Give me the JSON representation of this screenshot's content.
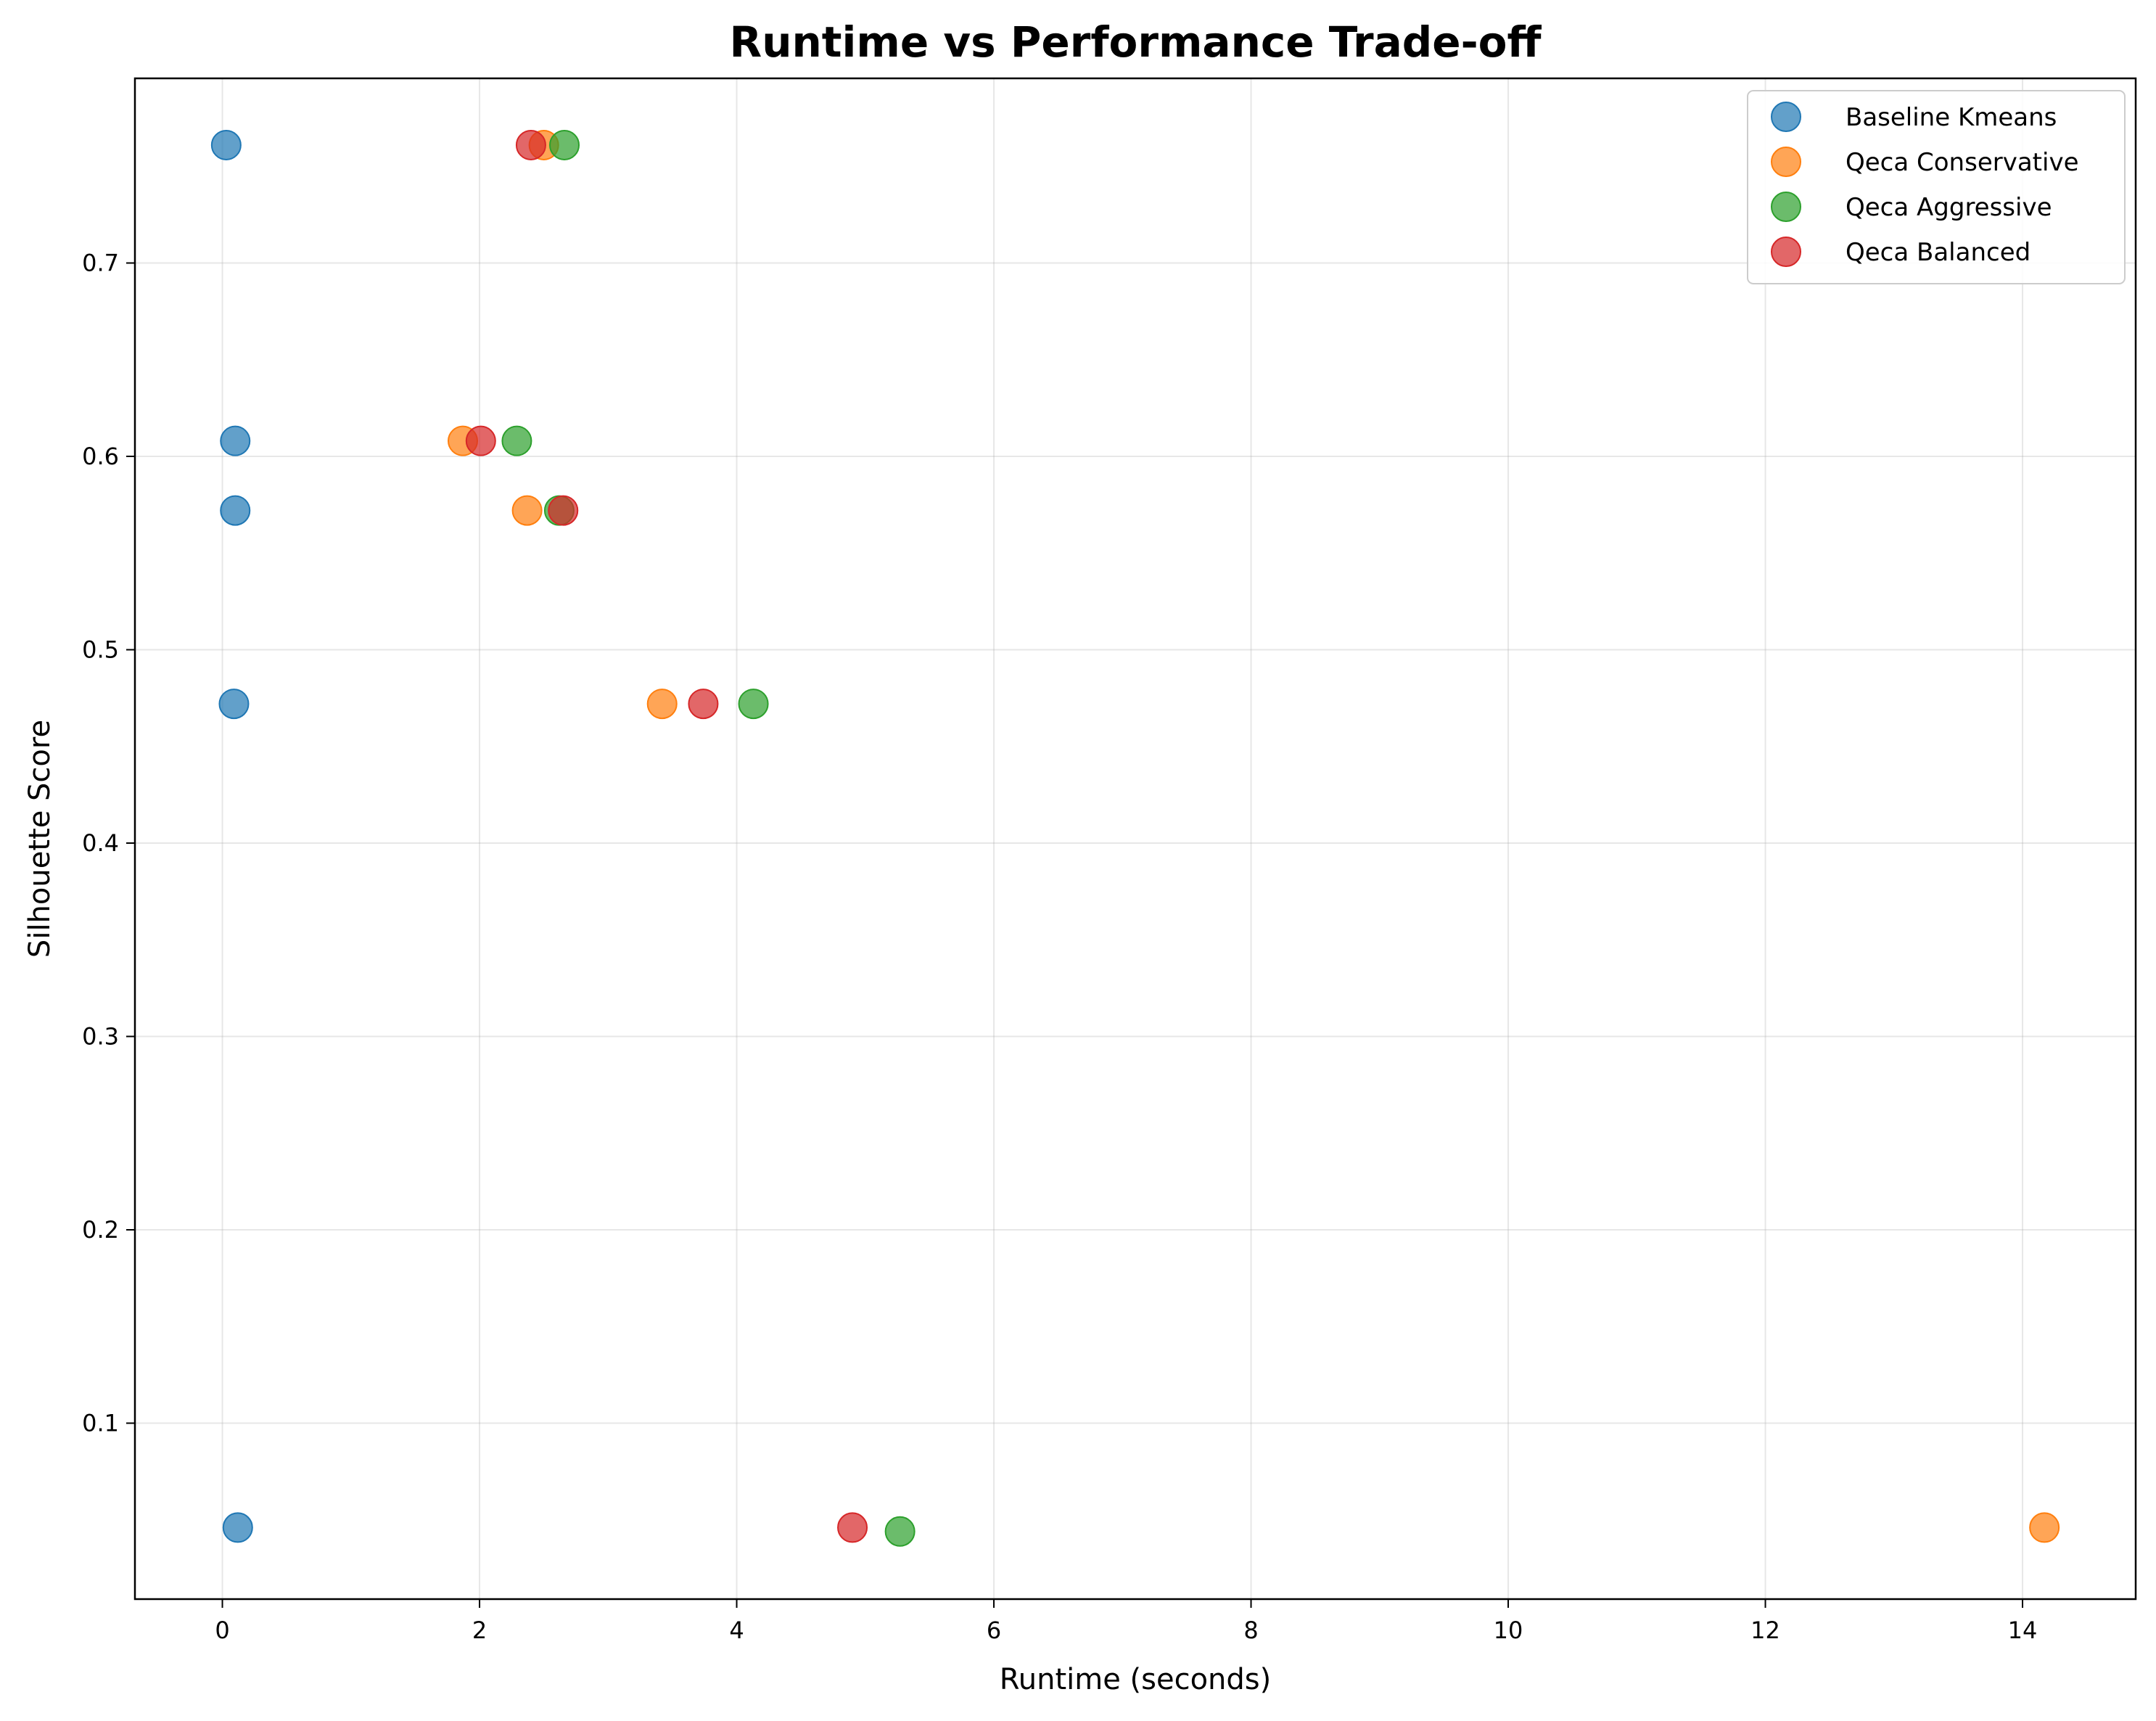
{
  "chart_data": {
    "type": "scatter",
    "title": "Runtime vs Performance Trade-off",
    "xlabel": "Runtime (seconds)",
    "ylabel": "Silhouette Score",
    "xlim": [
      -0.68,
      14.88
    ],
    "ylim": [
      0.009,
      0.7955
    ],
    "xticks": [
      0,
      2,
      4,
      6,
      8,
      10,
      12,
      14
    ],
    "yticks": [
      0.1,
      0.2,
      0.3,
      0.4,
      0.5,
      0.6,
      0.7
    ],
    "xtick_labels": [
      "0",
      "2",
      "4",
      "6",
      "8",
      "10",
      "12",
      "14"
    ],
    "ytick_labels": [
      "0.1",
      "0.2",
      "0.3",
      "0.4",
      "0.5",
      "0.6",
      "0.7"
    ],
    "grid": true,
    "legend_position": "top-right",
    "series": [
      {
        "name": "Baseline Kmeans",
        "color": "#1f77b4",
        "points": [
          {
            "x": 0.03,
            "y": 0.761
          },
          {
            "x": 0.1,
            "y": 0.608
          },
          {
            "x": 0.1,
            "y": 0.572
          },
          {
            "x": 0.09,
            "y": 0.472
          },
          {
            "x": 0.12,
            "y": 0.046
          }
        ]
      },
      {
        "name": "Qeca Conservative",
        "color": "#ff7f0e",
        "points": [
          {
            "x": 2.5,
            "y": 0.761
          },
          {
            "x": 1.87,
            "y": 0.608
          },
          {
            "x": 2.37,
            "y": 0.572
          },
          {
            "x": 3.42,
            "y": 0.472
          },
          {
            "x": 14.17,
            "y": 0.046
          }
        ]
      },
      {
        "name": "Qeca Aggressive",
        "color": "#2ca02c",
        "points": [
          {
            "x": 2.66,
            "y": 0.761
          },
          {
            "x": 2.29,
            "y": 0.608
          },
          {
            "x": 2.62,
            "y": 0.572
          },
          {
            "x": 4.13,
            "y": 0.472
          },
          {
            "x": 5.27,
            "y": 0.044
          }
        ]
      },
      {
        "name": "Qeca Balanced",
        "color": "#d62728",
        "points": [
          {
            "x": 2.4,
            "y": 0.761
          },
          {
            "x": 2.01,
            "y": 0.608
          },
          {
            "x": 2.65,
            "y": 0.572
          },
          {
            "x": 3.74,
            "y": 0.472
          },
          {
            "x": 4.9,
            "y": 0.046
          }
        ]
      }
    ]
  }
}
